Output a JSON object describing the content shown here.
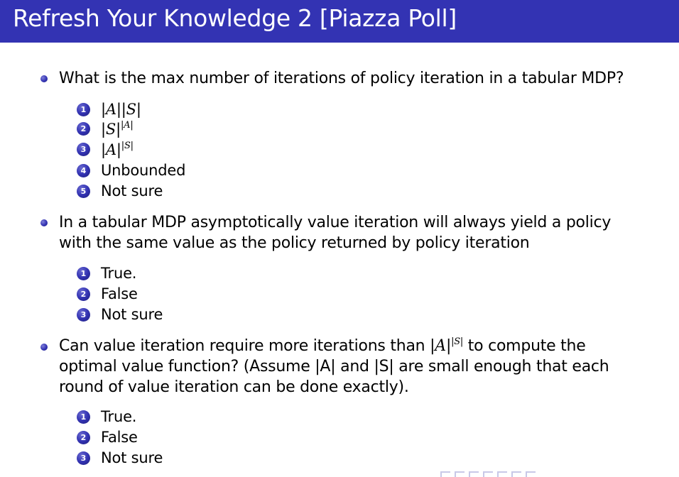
{
  "slide": {
    "title": "Refresh Your Knowledge 2 [Piazza Poll]"
  },
  "questions": [
    {
      "text": "What is the max number of iterations of policy iteration in a tabular MDP?",
      "options": [
        {
          "number": "1",
          "label": "|A||S|"
        },
        {
          "number": "2",
          "label": "|S|^|A|"
        },
        {
          "number": "3",
          "label": "|A|^|S|"
        },
        {
          "number": "4",
          "label": "Unbounded"
        },
        {
          "number": "5",
          "label": "Not sure"
        }
      ]
    },
    {
      "text_line1": "In a tabular MDP asymptotically value iteration will always yield a policy",
      "text_line2": "with the same value as the policy returned by policy iteration",
      "options": [
        {
          "number": "1",
          "label": "True."
        },
        {
          "number": "2",
          "label": "False"
        },
        {
          "number": "3",
          "label": "Not sure"
        }
      ]
    },
    {
      "text_line1_a": "Can value iteration require more iterations than ",
      "text_line1_b": " to compute the",
      "text_line2": "optimal value function? (Assume |A| and |S| are small enough that each",
      "text_line3": "round of value iteration can be done exactly).",
      "options": [
        {
          "number": "1",
          "label": "True."
        },
        {
          "number": "2",
          "label": "False"
        },
        {
          "number": "3",
          "label": "Not sure"
        }
      ]
    }
  ],
  "colors": {
    "title_bar": "#3333b3",
    "title_text": "#ffffff",
    "bullet": "#3333b3"
  },
  "icons": {
    "bullet": "ball-bullet-icon",
    "enumeration": "numbered-ball-icon",
    "navigation": "beamer-navigation-icons"
  }
}
